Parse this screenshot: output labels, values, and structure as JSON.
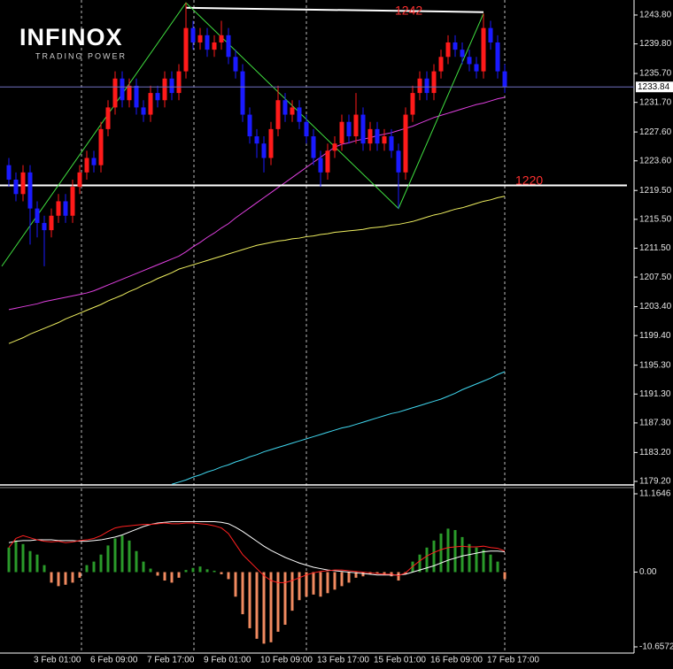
{
  "logo": {
    "name": "INFINOX",
    "tagline": "TRADING POWER"
  },
  "chart_data": [
    {
      "type": "candlestick",
      "categories": [
        null,
        null,
        null,
        null,
        "3 Feb 01:00",
        null,
        null,
        null,
        null,
        null,
        null,
        null,
        "6 Feb 09:00",
        null,
        null,
        null,
        null,
        null,
        null,
        null,
        "7 Feb 17:00",
        null,
        null,
        null,
        null,
        null,
        null,
        null,
        "9 Feb 01:00",
        null,
        null,
        null,
        null,
        null,
        null,
        null,
        "10 Feb 09:00",
        null,
        null,
        null,
        null,
        null,
        null,
        null,
        "13 Feb 17:00",
        null,
        null,
        null,
        null,
        null,
        null,
        null,
        "15 Feb 01:00",
        null,
        null,
        null,
        null,
        null,
        null,
        null,
        "16 Feb 09:00",
        null,
        null,
        null,
        null,
        null,
        null,
        null,
        "17 Feb 17:00",
        null,
        null
      ],
      "open": [
        1223,
        1221,
        1219,
        1222,
        1217,
        1215,
        1214,
        1216,
        1218,
        1216,
        1220,
        1222,
        1224,
        1223,
        1228,
        1231,
        1235,
        1232,
        1234,
        1231,
        1230,
        1233,
        1232,
        1235,
        1233,
        1236,
        1242,
        1240,
        1241,
        1239,
        1240,
        1241,
        1238,
        1236,
        1230,
        1227,
        1226,
        1224,
        1228,
        1232,
        1230,
        1231,
        1229,
        1227,
        1224,
        1222,
        1225,
        1226,
        1229,
        1227,
        1230,
        1226,
        1228,
        1226,
        1227,
        1225,
        1222,
        1230,
        1233,
        1235,
        1233,
        1236,
        1238,
        1240,
        1239,
        1238,
        1237,
        1236,
        1242,
        1240,
        1236
      ],
      "high": [
        1224,
        1222,
        1223,
        1223,
        1218,
        1216,
        1217,
        1219,
        1219,
        1221,
        1223,
        1225,
        1225,
        1229,
        1232,
        1236,
        1236,
        1235,
        1235,
        1232,
        1234,
        1234,
        1236,
        1236,
        1237,
        1245.5,
        1243,
        1242,
        1242,
        1241,
        1243,
        1242,
        1239,
        1237,
        1231,
        1228,
        1227,
        1229,
        1234,
        1233,
        1232,
        1232,
        1230,
        1228,
        1225,
        1226,
        1227,
        1230,
        1230,
        1233,
        1231,
        1229,
        1229,
        1228,
        1228,
        1226,
        1231,
        1234,
        1236,
        1236,
        1237,
        1239,
        1241,
        1241,
        1240,
        1239,
        1238,
        1244,
        1243,
        1241,
        1237
      ],
      "low": [
        1220,
        1218,
        1218,
        1212,
        1213,
        1209,
        1213,
        1215,
        1215,
        1215,
        1219,
        1221,
        1222,
        1222,
        1227,
        1230,
        1231,
        1231,
        1230,
        1229,
        1229,
        1231,
        1231,
        1232,
        1232,
        1235,
        1239,
        1239,
        1238,
        1238,
        1239,
        1237,
        1235,
        1229,
        1226,
        1224,
        1222,
        1223,
        1227,
        1229,
        1229,
        1228,
        1226,
        1223,
        1220,
        1221,
        1224,
        1225,
        1226,
        1226,
        1225,
        1225,
        1225,
        1225,
        1224,
        1217,
        1221,
        1229,
        1232,
        1232,
        1232,
        1235,
        1237,
        1238,
        1237,
        1236,
        1235,
        1235,
        1239,
        1235,
        1233
      ],
      "close": [
        1221,
        1219,
        1222,
        1217,
        1215,
        1214,
        1216,
        1218,
        1216,
        1220,
        1222,
        1224,
        1223,
        1228,
        1231,
        1235,
        1232,
        1234,
        1231,
        1230,
        1233,
        1232,
        1235,
        1233,
        1236,
        1242,
        1240,
        1241,
        1239,
        1240,
        1241,
        1238,
        1236,
        1230,
        1227,
        1226,
        1224,
        1228,
        1232,
        1230,
        1231,
        1229,
        1227,
        1224,
        1222,
        1225,
        1226,
        1229,
        1227,
        1230,
        1226,
        1228,
        1226,
        1227,
        1225,
        1222,
        1230,
        1233,
        1235,
        1233,
        1236,
        1238,
        1240,
        1239,
        1238,
        1237,
        1236,
        1242,
        1240,
        1236,
        1233.84
      ],
      "up_color": "#ff1a1a",
      "down_color": "#1a1aff",
      "series": [
        {
          "color": "#e040e0",
          "values": [
            1203.0,
            1203.2,
            1203.4,
            1203.6,
            1203.8,
            1204.1,
            1204.3,
            1204.5,
            1204.7,
            1204.9,
            1205.1,
            1205.3,
            1205.6,
            1206.0,
            1206.4,
            1206.8,
            1207.2,
            1207.6,
            1208.0,
            1208.4,
            1208.8,
            1209.2,
            1209.6,
            1210.0,
            1210.4,
            1211.0,
            1211.7,
            1212.3,
            1213.0,
            1213.6,
            1214.3,
            1214.9,
            1215.7,
            1216.4,
            1217.1,
            1217.8,
            1218.5,
            1219.2,
            1219.9,
            1220.6,
            1221.3,
            1222.0,
            1222.7,
            1223.4,
            1224.1,
            1224.8,
            1225.5,
            1225.9,
            1226.1,
            1226.4,
            1226.6,
            1226.8,
            1227.1,
            1227.3,
            1227.5,
            1227.8,
            1228.1,
            1228.4,
            1228.8,
            1229.2,
            1229.6,
            1229.9,
            1230.2,
            1230.5,
            1230.8,
            1231.1,
            1231.4,
            1231.6,
            1231.9,
            1232.2,
            1232.4
          ]
        },
        {
          "color": "#f0f060",
          "values": [
            1198.3,
            1198.7,
            1199.1,
            1199.6,
            1200.0,
            1200.4,
            1200.8,
            1201.2,
            1201.7,
            1202.1,
            1202.5,
            1202.9,
            1203.3,
            1203.7,
            1204.2,
            1204.6,
            1205.0,
            1205.5,
            1205.9,
            1206.4,
            1206.8,
            1207.3,
            1207.7,
            1208.1,
            1208.6,
            1208.9,
            1209.2,
            1209.5,
            1209.8,
            1210.1,
            1210.4,
            1210.7,
            1211.0,
            1211.3,
            1211.6,
            1211.9,
            1212.1,
            1212.3,
            1212.5,
            1212.6,
            1212.8,
            1212.9,
            1213.1,
            1213.2,
            1213.4,
            1213.5,
            1213.7,
            1213.8,
            1213.9,
            1214.0,
            1214.1,
            1214.3,
            1214.4,
            1214.5,
            1214.7,
            1214.8,
            1215.0,
            1215.2,
            1215.5,
            1215.8,
            1216.1,
            1216.3,
            1216.6,
            1216.9,
            1217.1,
            1217.4,
            1217.7,
            1218.0,
            1218.2,
            1218.5,
            1218.7
          ]
        },
        {
          "color": "#40d8f0",
          "values": [
            null,
            null,
            null,
            null,
            null,
            null,
            null,
            null,
            null,
            null,
            null,
            null,
            null,
            null,
            null,
            null,
            null,
            null,
            null,
            null,
            null,
            null,
            null,
            1178.8,
            1179.1,
            1179.4,
            1179.8,
            1180.1,
            1180.5,
            1180.8,
            1181.2,
            1181.5,
            1181.9,
            1182.2,
            1182.6,
            1182.9,
            1183.3,
            1183.6,
            1183.9,
            1184.2,
            1184.5,
            1184.8,
            1185.1,
            1185.4,
            1185.7,
            1186.0,
            1186.3,
            1186.6,
            1186.8,
            1187.1,
            1187.4,
            1187.7,
            1188.0,
            1188.3,
            1188.6,
            1188.8,
            1189.1,
            1189.4,
            1189.7,
            1190.0,
            1190.3,
            1190.6,
            1191.0,
            1191.4,
            1191.9,
            1192.3,
            1192.7,
            1193.1,
            1193.5,
            1194.0,
            1194.4
          ]
        }
      ],
      "zigzag": {
        "color": "#40e040",
        "x": [
          -1,
          25,
          55,
          67
        ],
        "values": [
          1209,
          1245.5,
          1217,
          1244
        ]
      },
      "resistance": {
        "x": [
          25,
          67
        ],
        "values": [
          1244.8,
          1244.2
        ]
      },
      "support": 1220.2,
      "annotations": [
        "1242",
        "1220"
      ],
      "last_price": 1233.84,
      "ylim": [
        1178.71,
        1245.88
      ],
      "yticks": [
        {
          "value": 1243.8,
          "label": "1243.80"
        },
        {
          "value": 1239.8,
          "label": "1239.80"
        },
        {
          "value": 1235.7,
          "label": "1235.70"
        },
        {
          "value": 1231.7,
          "label": "1231.70"
        },
        {
          "value": 1227.6,
          "label": "1227.60"
        },
        {
          "value": 1223.6,
          "label": "1223.60"
        },
        {
          "value": 1219.5,
          "label": "1219.50"
        },
        {
          "value": 1215.5,
          "label": "1215.50"
        },
        {
          "value": 1211.5,
          "label": "1211.50"
        },
        {
          "value": 1207.5,
          "label": "1207.50"
        },
        {
          "value": 1203.4,
          "label": "1203.40"
        },
        {
          "value": 1199.4,
          "label": "1199.40"
        },
        {
          "value": 1195.3,
          "label": "1195.30"
        },
        {
          "value": 1191.3,
          "label": "1191.30"
        },
        {
          "value": 1187.3,
          "label": "1187.30"
        },
        {
          "value": 1183.2,
          "label": "1183.20"
        },
        {
          "value": 1179.2,
          "label": "1179.20"
        }
      ]
    },
    {
      "type": "bar",
      "values": [
        3.5,
        4.5,
        4.0,
        3.0,
        2.5,
        1.0,
        -1.5,
        -2.0,
        -1.8,
        -1.5,
        -0.8,
        1.0,
        1.5,
        2.5,
        3.8,
        4.8,
        5.2,
        4.5,
        3.0,
        1.5,
        0.5,
        -0.5,
        -1.2,
        -1.5,
        -0.8,
        0.3,
        0.6,
        0.8,
        0.4,
        0.2,
        -0.3,
        -1.0,
        -3.5,
        -6.0,
        -8.0,
        -9.5,
        -10.2,
        -10.0,
        -8.5,
        -7.5,
        -5.5,
        -4.0,
        -3.5,
        -3.2,
        -3.5,
        -3.0,
        -2.5,
        -2.0,
        -1.5,
        -0.8,
        -0.6,
        -0.3,
        -0.2,
        -0.4,
        -0.6,
        -1.2,
        -0.3,
        1.5,
        2.5,
        3.5,
        4.5,
        5.5,
        6.2,
        6.0,
        5.0,
        4.0,
        3.5,
        3.2,
        2.5,
        1.5,
        -1.0
      ],
      "positive_color": "#2a9a2a",
      "negative_color": "#f08a60",
      "series": [
        {
          "color": "#ffffff",
          "values": [
            4.2,
            4.4,
            4.5,
            4.5,
            4.6,
            4.6,
            4.6,
            4.5,
            4.5,
            4.5,
            4.4,
            4.4,
            4.5,
            4.6,
            4.8,
            5.0,
            5.3,
            5.7,
            6.1,
            6.5,
            6.8,
            7.0,
            7.1,
            7.2,
            7.2,
            7.2,
            7.2,
            7.2,
            7.2,
            7.2,
            7.1,
            6.9,
            6.4,
            5.8,
            5.1,
            4.4,
            3.7,
            3.1,
            2.6,
            2.1,
            1.7,
            1.3,
            1.0,
            0.7,
            0.5,
            0.3,
            0.2,
            0.1,
            0.0,
            -0.1,
            -0.2,
            -0.3,
            -0.4,
            -0.4,
            -0.4,
            -0.4,
            -0.3,
            0.0,
            0.3,
            0.6,
            0.9,
            1.3,
            1.7,
            2.0,
            2.3,
            2.5,
            2.7,
            2.9,
            3.0,
            3.0,
            2.9
          ]
        },
        {
          "color": "#ff2020",
          "values": [
            3.5,
            4.8,
            5.2,
            4.9,
            4.6,
            4.4,
            4.3,
            4.4,
            4.2,
            4.3,
            4.5,
            4.6,
            4.8,
            5.2,
            5.8,
            6.3,
            6.5,
            6.6,
            6.7,
            6.8,
            6.8,
            6.9,
            7.0,
            6.9,
            6.9,
            7.0,
            7.0,
            6.9,
            6.8,
            6.6,
            6.3,
            5.5,
            4.0,
            2.5,
            1.5,
            0.5,
            -0.5,
            -1.2,
            -1.5,
            -1.5,
            -1.2,
            -0.8,
            -0.4,
            -0.1,
            0.1,
            0.2,
            0.3,
            0.3,
            0.2,
            0.1,
            0.0,
            -0.1,
            -0.2,
            -0.3,
            -0.3,
            -0.5,
            -0.1,
            0.8,
            1.6,
            2.3,
            2.8,
            3.2,
            3.5,
            3.6,
            3.7,
            3.6,
            3.6,
            3.7,
            3.5,
            3.4,
            3.0
          ]
        }
      ],
      "ylim": [
        -11.54,
        12.05
      ],
      "yticks": [
        {
          "value": 11.1646,
          "label": "11.1646"
        },
        {
          "value": 0,
          "label": "0.00"
        },
        {
          "value": -10.6572,
          "label": "-10.6572"
        }
      ]
    }
  ]
}
